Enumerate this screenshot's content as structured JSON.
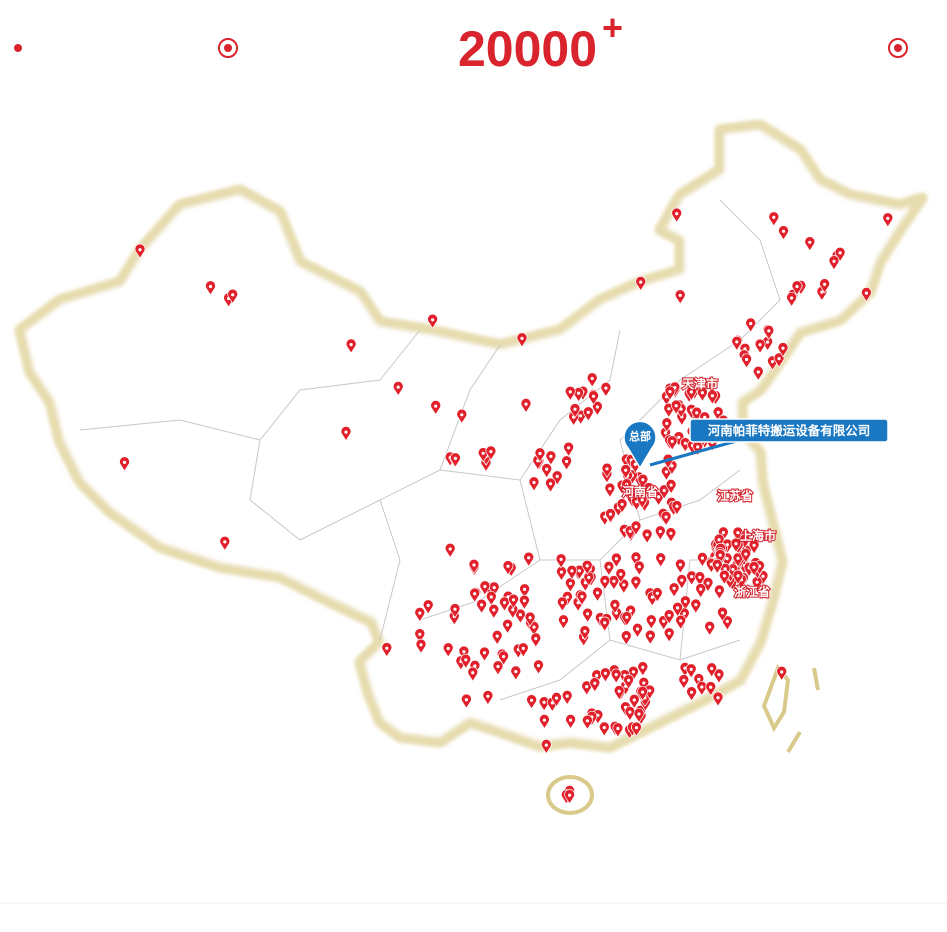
{
  "header": {
    "count": "20000",
    "plus": "+"
  },
  "hq": {
    "badge": "总部",
    "name": "河南帕菲特搬运设备有限公司"
  },
  "provinces": [
    "天津市",
    "河南省",
    "江苏省",
    "上海市",
    "浙江省"
  ]
}
